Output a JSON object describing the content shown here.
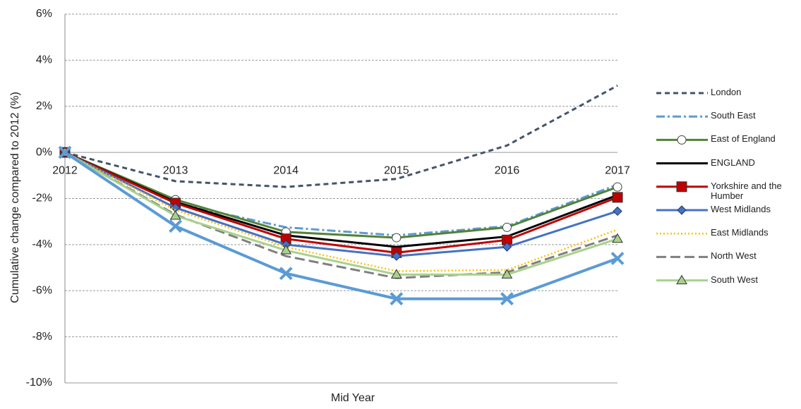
{
  "chart_data": {
    "type": "line",
    "y_label": "Cumulative  change compared to 2012 (%)",
    "x_label": "Mid Year",
    "categories": [
      "2012",
      "2013",
      "2014",
      "2015",
      "2016",
      "2017"
    ],
    "ylim": [
      -10,
      6
    ],
    "yticks": [
      {
        "value": -10,
        "label": "-10%"
      },
      {
        "value": -8,
        "label": "-8%"
      },
      {
        "value": -6,
        "label": "-6%"
      },
      {
        "value": -4,
        "label": "-4%"
      },
      {
        "value": -2,
        "label": "-2%"
      },
      {
        "value": 0,
        "label": "0%"
      },
      {
        "value": 2,
        "label": "2%"
      },
      {
        "value": 4,
        "label": "4%"
      },
      {
        "value": 6,
        "label": "6%"
      }
    ],
    "grid": true,
    "legend": "right",
    "series": [
      {
        "name": "London",
        "color": "#44546a",
        "dash": "7,5",
        "width": 3,
        "marker": "none",
        "values": [
          0,
          -1.25,
          -1.5,
          -1.15,
          0.3,
          2.9
        ]
      },
      {
        "name": "South East",
        "color": "#5b9bd5",
        "dash": "12,4,3,4",
        "width": 3,
        "marker": "none",
        "values": [
          0,
          -2.2,
          -3.25,
          -3.6,
          -3.2,
          -1.4
        ]
      },
      {
        "name": "East of England",
        "color": "#548235",
        "dash": "",
        "width": 3,
        "marker": "circle",
        "values": [
          0,
          -2.05,
          -3.45,
          -3.7,
          -3.25,
          -1.5
        ]
      },
      {
        "name": "ENGLAND",
        "color": "#000000",
        "dash": "",
        "width": 3,
        "marker": "none",
        "values": [
          0,
          -2.15,
          -3.6,
          -4.1,
          -3.65,
          -1.85
        ]
      },
      {
        "name": "Yorkshire and the Humber",
        "color": "#c00000",
        "dash": "",
        "width": 3,
        "marker": "square",
        "values": [
          0,
          -2.2,
          -3.75,
          -4.35,
          -3.8,
          -1.95
        ]
      },
      {
        "name": "West Midlands",
        "color": "#4472c4",
        "dash": "",
        "width": 3,
        "marker": "diamond",
        "values": [
          0,
          -2.4,
          -4.0,
          -4.5,
          -4.1,
          -2.55
        ]
      },
      {
        "name": "East Midlands",
        "color": "#ffc000",
        "dash": "2,3",
        "width": 2.5,
        "marker": "none",
        "values": [
          0,
          -2.5,
          -4.1,
          -5.15,
          -5.1,
          -3.35
        ]
      },
      {
        "name": "North West",
        "color": "#7f7f7f",
        "dash": "14,6",
        "width": 3,
        "marker": "none",
        "values": [
          0,
          -2.7,
          -4.5,
          -5.45,
          -5.2,
          -3.6
        ]
      },
      {
        "name": "South West",
        "color": "#a9d18e",
        "dash": "",
        "width": 3,
        "marker": "triangle",
        "values": [
          0,
          -2.75,
          -4.25,
          -5.3,
          -5.3,
          -3.75
        ]
      },
      {
        "color": "#5b9bd5",
        "dash": "",
        "width": 4,
        "marker": "x",
        "values": [
          0,
          -3.2,
          -5.25,
          -6.35,
          -6.35,
          -4.6
        ]
      }
    ]
  }
}
